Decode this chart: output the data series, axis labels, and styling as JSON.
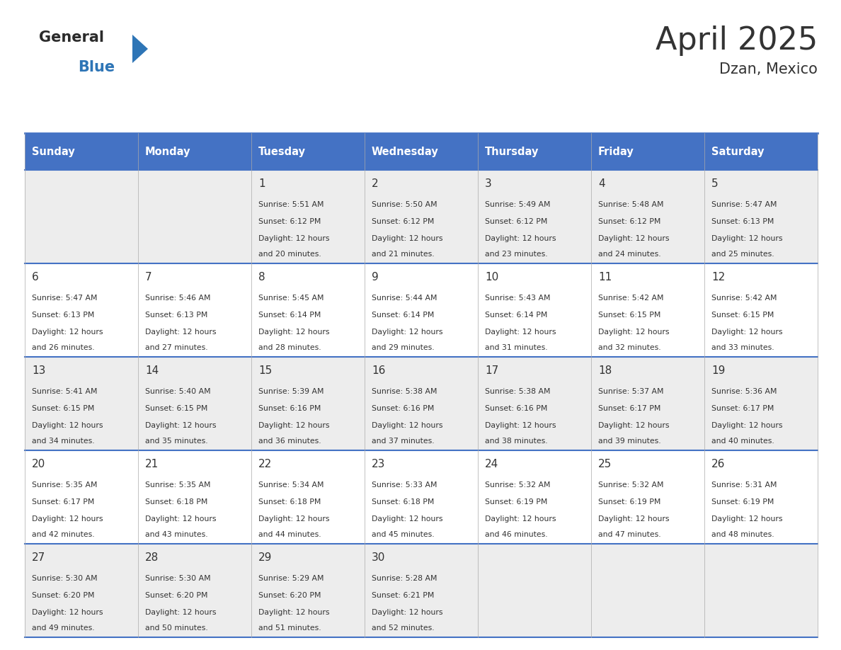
{
  "title": "April 2025",
  "subtitle": "Dzan, Mexico",
  "header_bg": "#4472C4",
  "header_text_color": "#FFFFFF",
  "cell_bg_odd": "#EDEDED",
  "cell_bg_even": "#FFFFFF",
  "border_color": "#4472C4",
  "text_color": "#333333",
  "days_of_week": [
    "Sunday",
    "Monday",
    "Tuesday",
    "Wednesday",
    "Thursday",
    "Friday",
    "Saturday"
  ],
  "weeks": [
    [
      {
        "day": null,
        "sunrise": null,
        "sunset": null,
        "daylight_min": null
      },
      {
        "day": null,
        "sunrise": null,
        "sunset": null,
        "daylight_min": null
      },
      {
        "day": 1,
        "sunrise": "5:51 AM",
        "sunset": "6:12 PM",
        "daylight_min": 20
      },
      {
        "day": 2,
        "sunrise": "5:50 AM",
        "sunset": "6:12 PM",
        "daylight_min": 21
      },
      {
        "day": 3,
        "sunrise": "5:49 AM",
        "sunset": "6:12 PM",
        "daylight_min": 23
      },
      {
        "day": 4,
        "sunrise": "5:48 AM",
        "sunset": "6:12 PM",
        "daylight_min": 24
      },
      {
        "day": 5,
        "sunrise": "5:47 AM",
        "sunset": "6:13 PM",
        "daylight_min": 25
      }
    ],
    [
      {
        "day": 6,
        "sunrise": "5:47 AM",
        "sunset": "6:13 PM",
        "daylight_min": 26
      },
      {
        "day": 7,
        "sunrise": "5:46 AM",
        "sunset": "6:13 PM",
        "daylight_min": 27
      },
      {
        "day": 8,
        "sunrise": "5:45 AM",
        "sunset": "6:14 PM",
        "daylight_min": 28
      },
      {
        "day": 9,
        "sunrise": "5:44 AM",
        "sunset": "6:14 PM",
        "daylight_min": 29
      },
      {
        "day": 10,
        "sunrise": "5:43 AM",
        "sunset": "6:14 PM",
        "daylight_min": 31
      },
      {
        "day": 11,
        "sunrise": "5:42 AM",
        "sunset": "6:15 PM",
        "daylight_min": 32
      },
      {
        "day": 12,
        "sunrise": "5:42 AM",
        "sunset": "6:15 PM",
        "daylight_min": 33
      }
    ],
    [
      {
        "day": 13,
        "sunrise": "5:41 AM",
        "sunset": "6:15 PM",
        "daylight_min": 34
      },
      {
        "day": 14,
        "sunrise": "5:40 AM",
        "sunset": "6:15 PM",
        "daylight_min": 35
      },
      {
        "day": 15,
        "sunrise": "5:39 AM",
        "sunset": "6:16 PM",
        "daylight_min": 36
      },
      {
        "day": 16,
        "sunrise": "5:38 AM",
        "sunset": "6:16 PM",
        "daylight_min": 37
      },
      {
        "day": 17,
        "sunrise": "5:38 AM",
        "sunset": "6:16 PM",
        "daylight_min": 38
      },
      {
        "day": 18,
        "sunrise": "5:37 AM",
        "sunset": "6:17 PM",
        "daylight_min": 39
      },
      {
        "day": 19,
        "sunrise": "5:36 AM",
        "sunset": "6:17 PM",
        "daylight_min": 40
      }
    ],
    [
      {
        "day": 20,
        "sunrise": "5:35 AM",
        "sunset": "6:17 PM",
        "daylight_min": 42
      },
      {
        "day": 21,
        "sunrise": "5:35 AM",
        "sunset": "6:18 PM",
        "daylight_min": 43
      },
      {
        "day": 22,
        "sunrise": "5:34 AM",
        "sunset": "6:18 PM",
        "daylight_min": 44
      },
      {
        "day": 23,
        "sunrise": "5:33 AM",
        "sunset": "6:18 PM",
        "daylight_min": 45
      },
      {
        "day": 24,
        "sunrise": "5:32 AM",
        "sunset": "6:19 PM",
        "daylight_min": 46
      },
      {
        "day": 25,
        "sunrise": "5:32 AM",
        "sunset": "6:19 PM",
        "daylight_min": 47
      },
      {
        "day": 26,
        "sunrise": "5:31 AM",
        "sunset": "6:19 PM",
        "daylight_min": 48
      }
    ],
    [
      {
        "day": 27,
        "sunrise": "5:30 AM",
        "sunset": "6:20 PM",
        "daylight_min": 49
      },
      {
        "day": 28,
        "sunrise": "5:30 AM",
        "sunset": "6:20 PM",
        "daylight_min": 50
      },
      {
        "day": 29,
        "sunrise": "5:29 AM",
        "sunset": "6:20 PM",
        "daylight_min": 51
      },
      {
        "day": 30,
        "sunrise": "5:28 AM",
        "sunset": "6:21 PM",
        "daylight_min": 52
      },
      {
        "day": null,
        "sunrise": null,
        "sunset": null,
        "daylight_min": null
      },
      {
        "day": null,
        "sunrise": null,
        "sunset": null,
        "daylight_min": null
      },
      {
        "day": null,
        "sunrise": null,
        "sunset": null,
        "daylight_min": null
      }
    ]
  ],
  "logo_general_color": "#2B2B2B",
  "logo_blue_color": "#2E75B6",
  "logo_triangle_color": "#2E75B6",
  "title_fontsize": 32,
  "subtitle_fontsize": 15,
  "header_fontsize": 10.5,
  "day_num_fontsize": 11,
  "cell_fontsize": 7.8
}
